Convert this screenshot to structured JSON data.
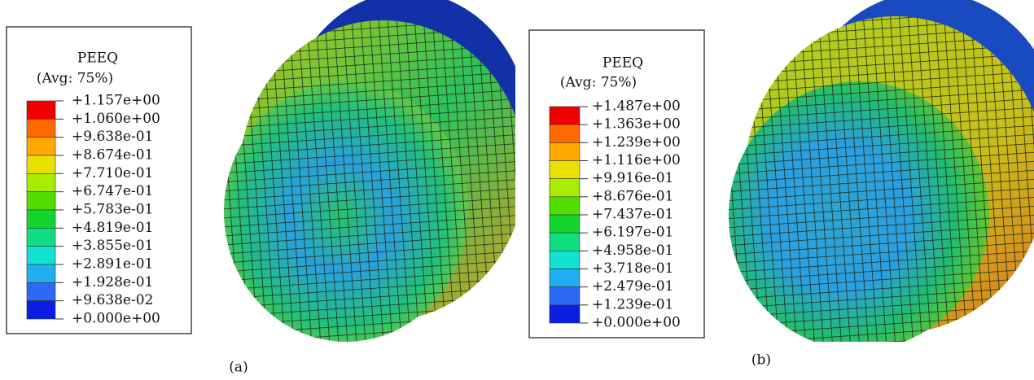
{
  "panels": [
    {
      "legend": {
        "title": "PEEQ",
        "subtitle": "(Avg: 75%)",
        "labels": [
          "+1.157e+00",
          "+1.060e+00",
          "+9.638e-01",
          "+8.674e-01",
          "+7.710e-01",
          "+6.747e-01",
          "+5.783e-01",
          "+4.819e-01",
          "+3.855e-01",
          "+2.891e-01",
          "+1.928e-01",
          "+9.638e-02",
          "+0.000e+00"
        ]
      },
      "caption": "(a)"
    },
    {
      "legend": {
        "title": "PEEQ",
        "subtitle": "(Avg: 75%)",
        "labels": [
          "+1.487e+00",
          "+1.363e+00",
          "+1.239e+00",
          "+1.116e+00",
          "+9.916e-01",
          "+8.676e-01",
          "+7.437e-01",
          "+6.197e-01",
          "+4.958e-01",
          "+3.718e-01",
          "+2.479e-01",
          "+1.239e-01",
          "+0.000e+00"
        ]
      },
      "caption": "(b)"
    }
  ]
}
